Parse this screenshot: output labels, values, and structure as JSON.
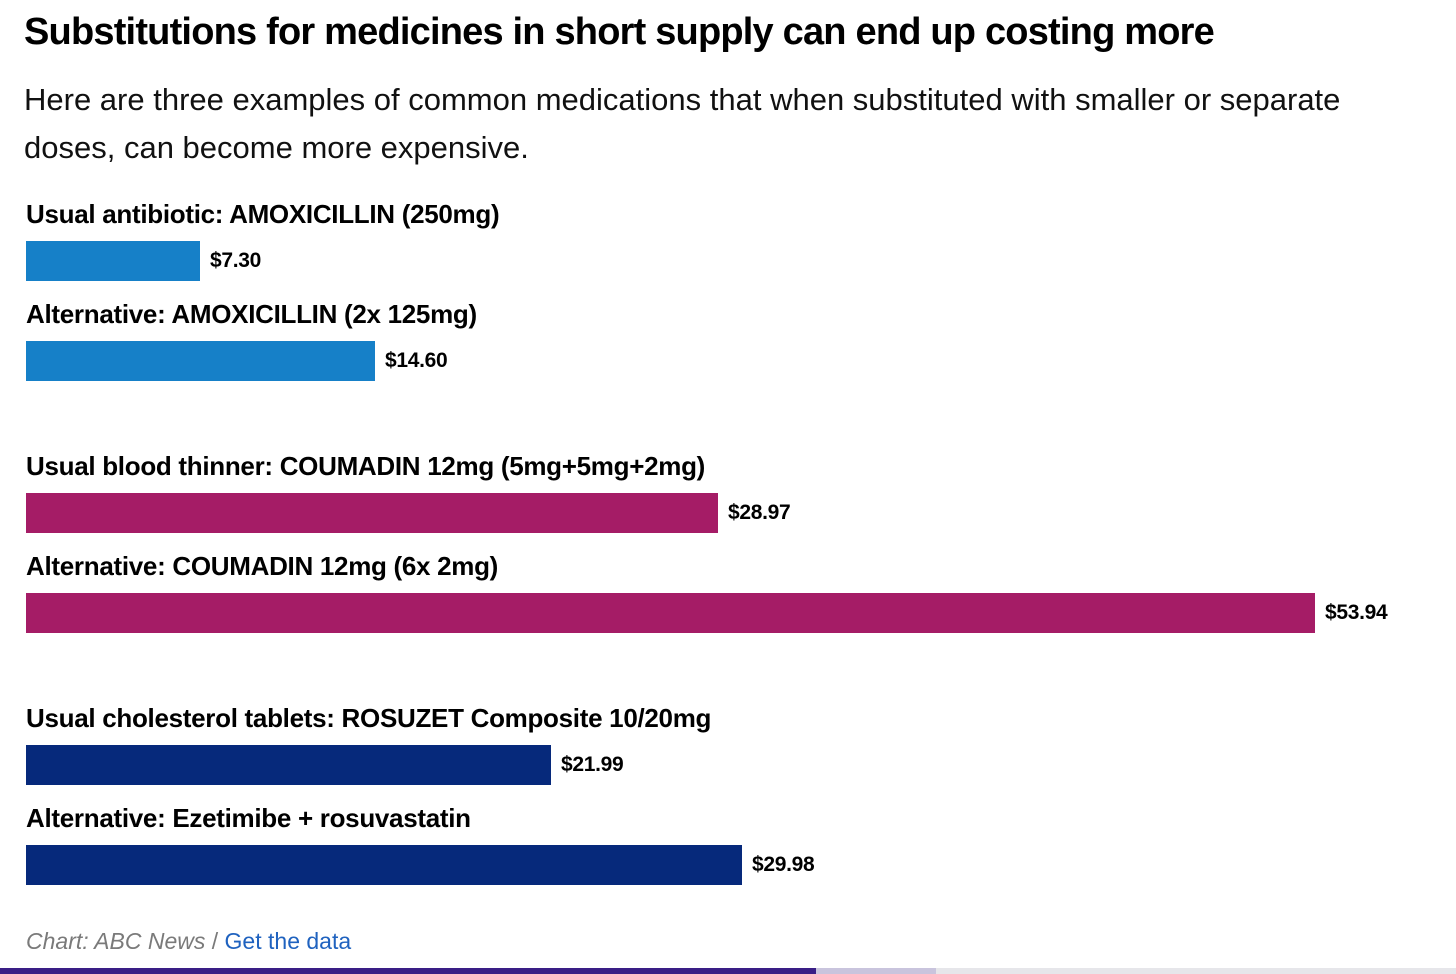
{
  "header": {
    "title": "Substitutions for medicines in short supply can end up costing more",
    "subtitle": "Here are three examples of common medications that when substituted with smaller or separate doses, can become more expensive."
  },
  "chart_data": {
    "type": "bar",
    "orientation": "horizontal",
    "categories": [
      "Usual antibiotic: AMOXICILLIN (250mg)",
      "Alternative: AMOXICILLIN (2x 125mg)",
      "Usual blood thinner: COUMADIN 12mg (5mg+5mg+2mg)",
      "Alternative: COUMADIN 12mg (6x 2mg)",
      "Usual cholesterol tablets: ROSUZET Composite 10/20mg",
      "Alternative: Ezetimibe + rosuvastatin"
    ],
    "values": [
      7.3,
      14.6,
      28.97,
      53.94,
      21.99,
      29.98
    ],
    "value_labels": [
      "$7.30",
      "$14.60",
      "$28.97",
      "$53.94",
      "$21.99",
      "$29.98"
    ],
    "groups": [
      0,
      0,
      1,
      1,
      2,
      2
    ],
    "group_colors": [
      "#1680c8",
      "#a51c66",
      "#06297b"
    ],
    "xlim": [
      0,
      53.94
    ],
    "grid": false,
    "legend": "none"
  },
  "footer": {
    "credit": "Chart: ABC News",
    "separator": "/",
    "link_text": "Get the data"
  }
}
